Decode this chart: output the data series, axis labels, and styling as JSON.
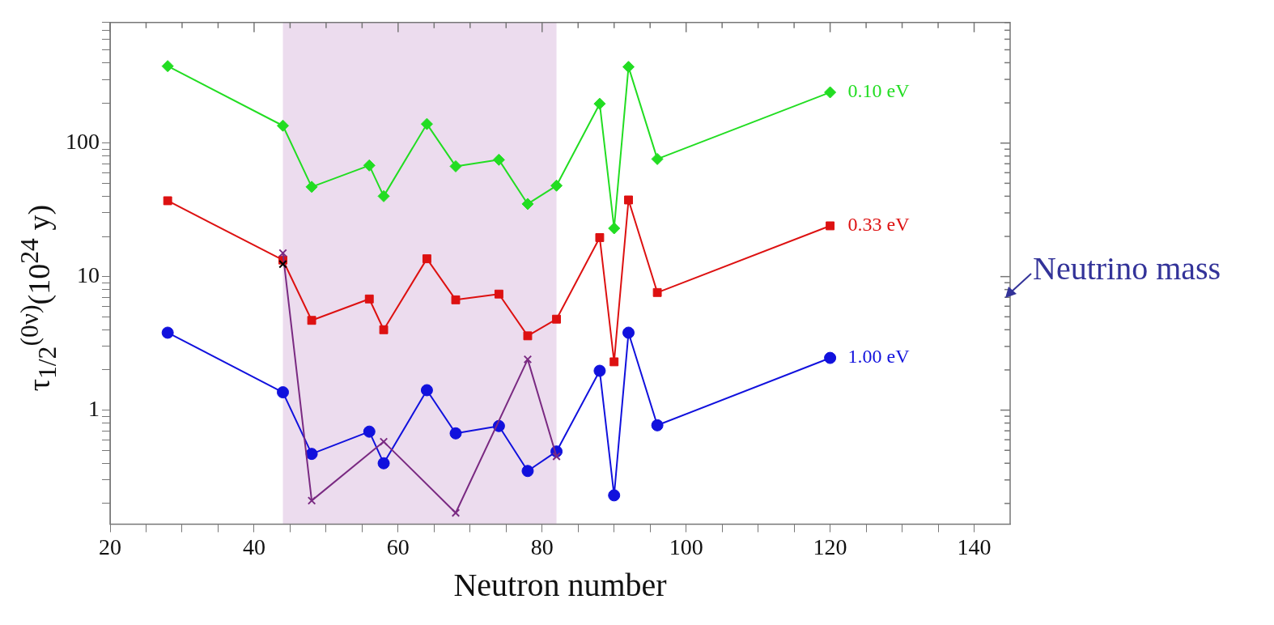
{
  "chart_data": {
    "type": "line",
    "xlabel": "Neutron number",
    "ylabel": "τ$_{1/2}$$^{(0ν)}$(10$^{24}$ y)",
    "log": "y",
    "grid": false,
    "xlim": [
      20,
      145
    ],
    "xticks": [
      20,
      {
        "value": 25,
        "label": null
      },
      {
        "value": 30,
        "label": null
      },
      {
        "value": 35,
        "label": null
      },
      40,
      {
        "value": 45,
        "label": null
      },
      {
        "value": 50,
        "label": null
      },
      {
        "value": 55,
        "label": null
      },
      60,
      {
        "value": 65,
        "label": null
      },
      {
        "value": 70,
        "label": null
      },
      {
        "value": 75,
        "label": null
      },
      80,
      {
        "value": 85,
        "label": null
      },
      {
        "value": 90,
        "label": null
      },
      {
        "value": 95,
        "label": null
      },
      100,
      {
        "value": 105,
        "label": null
      },
      {
        "value": 110,
        "label": null
      },
      {
        "value": 115,
        "label": null
      },
      120,
      {
        "value": 125,
        "label": null
      },
      {
        "value": 130,
        "label": null
      },
      {
        "value": 135,
        "label": null
      },
      140
    ],
    "ylim": [
      0.14,
      800
    ],
    "yticks": [
      {
        "value": 0.2,
        "label": null
      },
      {
        "value": 0.3,
        "label": null
      },
      {
        "value": 0.4,
        "label": null
      },
      {
        "value": 0.5,
        "label": null
      },
      {
        "value": 0.6,
        "label": null
      },
      {
        "value": 0.7,
        "label": null
      },
      {
        "value": 0.8,
        "label": null
      },
      {
        "value": 0.9,
        "label": null
      },
      1,
      {
        "value": 2,
        "label": null
      },
      {
        "value": 3,
        "label": null
      },
      {
        "value": 4,
        "label": null
      },
      {
        "value": 5,
        "label": null
      },
      {
        "value": 6,
        "label": null
      },
      {
        "value": 7,
        "label": null
      },
      {
        "value": 8,
        "label": null
      },
      {
        "value": 9,
        "label": null
      },
      10,
      {
        "value": 20,
        "label": null
      },
      {
        "value": 30,
        "label": null
      },
      {
        "value": 40,
        "label": null
      },
      {
        "value": 50,
        "label": null
      },
      {
        "value": 60,
        "label": null
      },
      {
        "value": 70,
        "label": null
      },
      {
        "value": 80,
        "label": null
      },
      {
        "value": 90,
        "label": null
      },
      100,
      {
        "value": 200,
        "label": null
      },
      {
        "value": 300,
        "label": null
      },
      {
        "value": 400,
        "label": null
      },
      {
        "value": 500,
        "label": null
      },
      {
        "value": 600,
        "label": null
      },
      {
        "value": 700,
        "label": null
      },
      {
        "value": 800,
        "label": null
      }
    ],
    "bands": [
      {
        "axis": "x",
        "from": 44,
        "to": 82,
        "color": "#ecdcee"
      }
    ],
    "x": [
      28,
      44,
      48,
      56,
      58,
      64,
      68,
      74,
      78,
      82,
      88,
      90,
      92,
      96,
      120
    ],
    "series": [
      {
        "name": "0.10 eV",
        "color": "#22dd22",
        "marker": "diamond",
        "values": [
          377,
          135,
          47,
          68,
          40,
          139,
          67,
          75,
          35,
          48,
          197,
          23,
          372,
          76,
          240
        ]
      },
      {
        "name": "0.33 eV",
        "color": "#dd1111",
        "marker": "square",
        "values": [
          37,
          13.3,
          4.7,
          6.8,
          4.0,
          13.6,
          6.7,
          7.4,
          3.6,
          4.8,
          19.6,
          2.3,
          37.5,
          7.6,
          24
        ]
      },
      {
        "name": "1.00 eV",
        "color": "#1111dd",
        "marker": "circle",
        "values": [
          3.8,
          1.36,
          0.47,
          0.69,
          0.4,
          1.41,
          0.67,
          0.76,
          0.35,
          0.49,
          1.97,
          0.23,
          3.8,
          0.77,
          2.46
        ]
      },
      {
        "color": "#7a2a82",
        "marker": "cross",
        "x": [
          44,
          48,
          58,
          68,
          78,
          82
        ],
        "values": [
          15,
          0.21,
          0.58,
          0.17,
          2.4,
          0.45
        ]
      },
      {
        "type": "scatter",
        "color": "#000000",
        "marker": "cross",
        "x": [
          44
        ],
        "values": [
          12.4
        ]
      }
    ],
    "annotations": [
      "Neutrino mass"
    ]
  }
}
